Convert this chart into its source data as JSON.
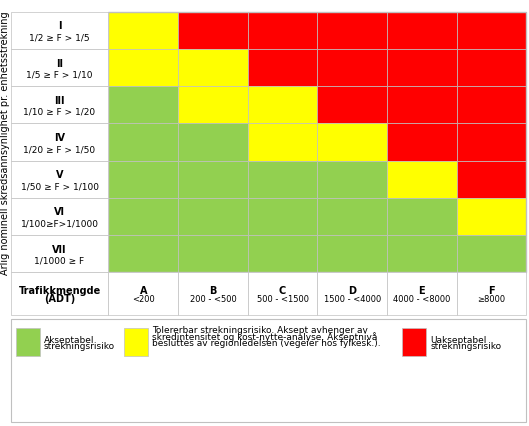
{
  "rows": [
    [
      "I",
      "1/2 ≥ F > 1/5"
    ],
    [
      "II",
      "1/5 ≥ F > 1/10"
    ],
    [
      "III",
      "1/10 ≥ F > 1/20"
    ],
    [
      "IV",
      "1/20 ≥ F > 1/50"
    ],
    [
      "V",
      "1/50 ≥ F > 1/100"
    ],
    [
      "VI",
      "1/100≥F>1/1000"
    ],
    [
      "VII",
      "1/1000 ≥ F"
    ]
  ],
  "cols_top": [
    "A",
    "B",
    "C",
    "D",
    "E",
    "F"
  ],
  "cols_bot": [
    "<200",
    "200 - <500",
    "500 - <1500",
    "1500 - <4000",
    "4000 - <8000",
    "≥8000"
  ],
  "col_header_line1": "Trafikkmengde",
  "col_header_line2": "(ÅDT)",
  "row_header": "Årlig nominell skredsannsynlighet pr. enhetsstrekning",
  "colors": [
    [
      "Y",
      "R",
      "R",
      "R",
      "R",
      "R"
    ],
    [
      "Y",
      "Y",
      "R",
      "R",
      "R",
      "R"
    ],
    [
      "G",
      "Y",
      "Y",
      "R",
      "R",
      "R"
    ],
    [
      "G",
      "G",
      "Y",
      "Y",
      "R",
      "R"
    ],
    [
      "G",
      "G",
      "G",
      "G",
      "Y",
      "R"
    ],
    [
      "G",
      "G",
      "G",
      "G",
      "G",
      "Y"
    ],
    [
      "G",
      "G",
      "G",
      "G",
      "G",
      "G"
    ]
  ],
  "color_map": {
    "G": "#92D050",
    "Y": "#FFFF00",
    "R": "#FF0000"
  },
  "legend": [
    {
      "color": "#92D050",
      "label1": "Akseptabel",
      "label2": "strekningsrisiko"
    },
    {
      "color": "#FFFF00",
      "label1": "Tolererbar strekningsrisiko. Aksept avhenger av",
      "label2": "skredintensitet og kost-nytte-analyse. Akseptnivå",
      "label3": "besluttes av regionledelsen (vegeier hos fylkesk.)."
    },
    {
      "color": "#FF0000",
      "label1": "Uakseptabel",
      "label2": "strekningsrisiko"
    }
  ],
  "border_color": "#C0C0C0",
  "background_color": "#FFFFFF",
  "text_color": "#000000",
  "font_size_cell": 7,
  "font_size_row_label": 7,
  "font_size_col_label": 7,
  "font_size_header": 7,
  "font_size_legend": 6.5
}
